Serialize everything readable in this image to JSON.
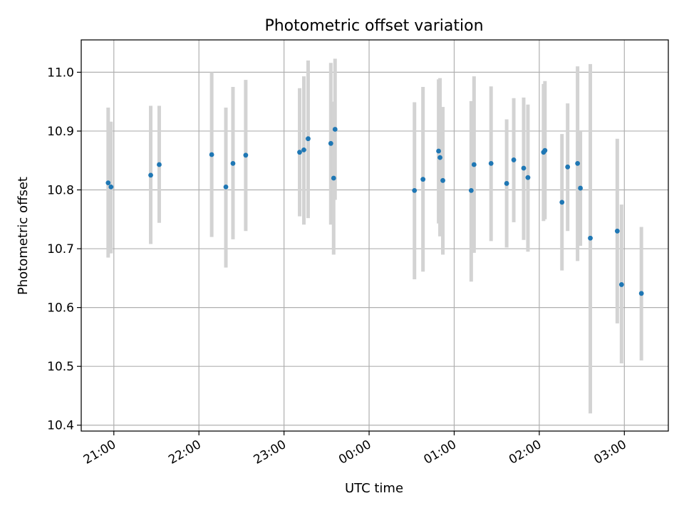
{
  "chart_data": {
    "type": "scatter",
    "title": "Photometric offset variation",
    "xlabel": "UTC time",
    "ylabel": "Photometric offset",
    "x_tick_labels": [
      "21:00",
      "22:00",
      "23:00",
      "00:00",
      "01:00",
      "02:00",
      "03:00"
    ],
    "y_tick_labels": [
      "10.4",
      "10.5",
      "10.6",
      "10.7",
      "10.8",
      "10.9",
      "11.0"
    ],
    "y_ticks": [
      10.4,
      10.5,
      10.6,
      10.7,
      10.8,
      10.9,
      11.0
    ],
    "ylim": [
      10.39,
      11.055
    ],
    "xlim": [
      "20:37",
      "03:31"
    ],
    "grid": true,
    "marker_color": "#1f77b4",
    "errorbar_color": "#d3d3d3",
    "points": [
      {
        "t": "20:56",
        "y": 10.812,
        "ylo": 10.685,
        "yhi": 10.94
      },
      {
        "t": "20:58",
        "y": 10.805,
        "ylo": 10.692,
        "yhi": 10.916
      },
      {
        "t": "21:26",
        "y": 10.825,
        "ylo": 10.708,
        "yhi": 10.943
      },
      {
        "t": "21:32",
        "y": 10.843,
        "ylo": 10.744,
        "yhi": 10.943
      },
      {
        "t": "22:09",
        "y": 10.86,
        "ylo": 10.72,
        "yhi": 11.0
      },
      {
        "t": "22:19",
        "y": 10.805,
        "ylo": 10.668,
        "yhi": 10.94
      },
      {
        "t": "22:24",
        "y": 10.845,
        "ylo": 10.716,
        "yhi": 10.975
      },
      {
        "t": "22:33",
        "y": 10.859,
        "ylo": 10.73,
        "yhi": 10.987
      },
      {
        "t": "23:11",
        "y": 10.864,
        "ylo": 10.755,
        "yhi": 10.973
      },
      {
        "t": "23:14",
        "y": 10.868,
        "ylo": 10.741,
        "yhi": 10.993
      },
      {
        "t": "23:17",
        "y": 10.887,
        "ylo": 10.752,
        "yhi": 11.02
      },
      {
        "t": "23:33",
        "y": 10.879,
        "ylo": 10.741,
        "yhi": 11.016
      },
      {
        "t": "23:35",
        "y": 10.82,
        "ylo": 10.69,
        "yhi": 10.95
      },
      {
        "t": "23:36",
        "y": 10.903,
        "ylo": 10.783,
        "yhi": 11.023
      },
      {
        "t": "00:32",
        "y": 10.799,
        "ylo": 10.648,
        "yhi": 10.949
      },
      {
        "t": "00:38",
        "y": 10.818,
        "ylo": 10.661,
        "yhi": 10.975
      },
      {
        "t": "00:49",
        "y": 10.866,
        "ylo": 10.743,
        "yhi": 10.988
      },
      {
        "t": "00:50",
        "y": 10.855,
        "ylo": 10.721,
        "yhi": 10.99
      },
      {
        "t": "00:52",
        "y": 10.816,
        "ylo": 10.69,
        "yhi": 10.941
      },
      {
        "t": "01:12",
        "y": 10.799,
        "ylo": 10.644,
        "yhi": 10.951
      },
      {
        "t": "01:14",
        "y": 10.843,
        "ylo": 10.693,
        "yhi": 10.993
      },
      {
        "t": "01:26",
        "y": 10.845,
        "ylo": 10.713,
        "yhi": 10.976
      },
      {
        "t": "01:37",
        "y": 10.811,
        "ylo": 10.702,
        "yhi": 10.92
      },
      {
        "t": "01:42",
        "y": 10.851,
        "ylo": 10.745,
        "yhi": 10.956
      },
      {
        "t": "01:49",
        "y": 10.837,
        "ylo": 10.715,
        "yhi": 10.957
      },
      {
        "t": "01:52",
        "y": 10.821,
        "ylo": 10.695,
        "yhi": 10.945
      },
      {
        "t": "02:03",
        "y": 10.864,
        "ylo": 10.747,
        "yhi": 10.98
      },
      {
        "t": "02:04",
        "y": 10.867,
        "ylo": 10.75,
        "yhi": 10.985
      },
      {
        "t": "02:16",
        "y": 10.779,
        "ylo": 10.663,
        "yhi": 10.895
      },
      {
        "t": "02:20",
        "y": 10.839,
        "ylo": 10.73,
        "yhi": 10.947
      },
      {
        "t": "02:27",
        "y": 10.845,
        "ylo": 10.679,
        "yhi": 11.01
      },
      {
        "t": "02:29",
        "y": 10.803,
        "ylo": 10.705,
        "yhi": 10.9
      },
      {
        "t": "02:36",
        "y": 10.718,
        "ylo": 10.42,
        "yhi": 11.014
      },
      {
        "t": "02:55",
        "y": 10.73,
        "ylo": 10.573,
        "yhi": 10.887
      },
      {
        "t": "02:58",
        "y": 10.639,
        "ylo": 10.505,
        "yhi": 10.775
      },
      {
        "t": "03:12",
        "y": 10.624,
        "ylo": 10.51,
        "yhi": 10.737
      }
    ]
  }
}
